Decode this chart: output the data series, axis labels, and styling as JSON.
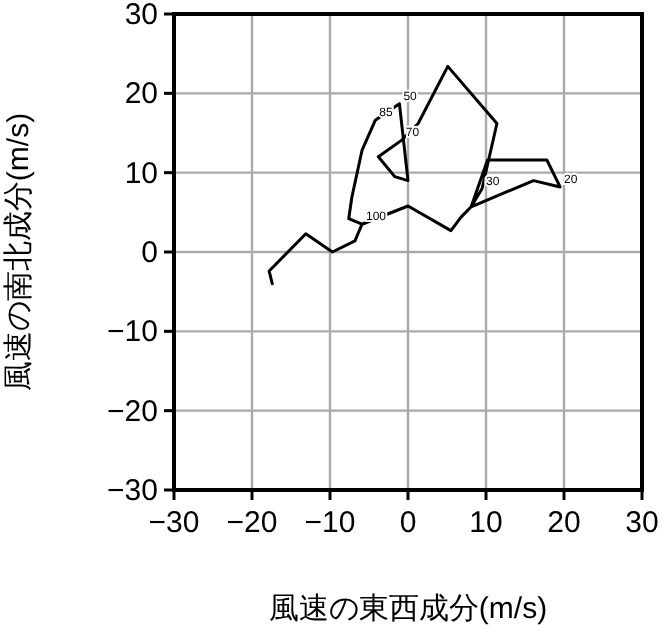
{
  "chart_data": {
    "type": "line",
    "xlabel": "風速の東西成分(m/s)",
    "ylabel": "風速の南北成分(m/s)",
    "xlim": [
      -30,
      30
    ],
    "ylim": [
      -30,
      30
    ],
    "xticks": [
      -30,
      -20,
      -10,
      0,
      10,
      20,
      30
    ],
    "yticks": [
      -30,
      -20,
      -10,
      0,
      10,
      20,
      30
    ],
    "grid": true,
    "series": [
      {
        "color": "#000000",
        "x": [
          -17.4,
          -17.8,
          -13.1,
          -9.7,
          -6.8,
          -5.9,
          0,
          5.5,
          6.8,
          8.1,
          10.2,
          17.8,
          19.5,
          16.1,
          8.1,
          9.5,
          11.4,
          5.1,
          1.3,
          -0.8,
          -3.8,
          -1.7,
          0,
          -1.1,
          -4.2,
          -5.9,
          -7.2,
          -7.6,
          -5.9
        ],
        "values": [
          -4,
          -2.4,
          2.3,
          0,
          1.4,
          3.5,
          5.8,
          2.7,
          4.4,
          5.7,
          11.6,
          11.6,
          8.2,
          9,
          5.7,
          8,
          16.2,
          23.4,
          16.2,
          14.1,
          12,
          9.5,
          9,
          18.7,
          16.6,
          12.8,
          6.9,
          4.2,
          3.5
        ]
      }
    ],
    "annotations": [
      {
        "text": "100",
        "x": -5.9,
        "y": 3.5
      },
      {
        "text": "85",
        "x": -4.2,
        "y": 16.6
      },
      {
        "text": "70",
        "x": -0.8,
        "y": 14.1
      },
      {
        "text": "50",
        "x": -1.1,
        "y": 18.7
      },
      {
        "text": "30",
        "x": 9.5,
        "y": 8
      },
      {
        "text": "20",
        "x": 19.5,
        "y": 8.2
      }
    ]
  }
}
